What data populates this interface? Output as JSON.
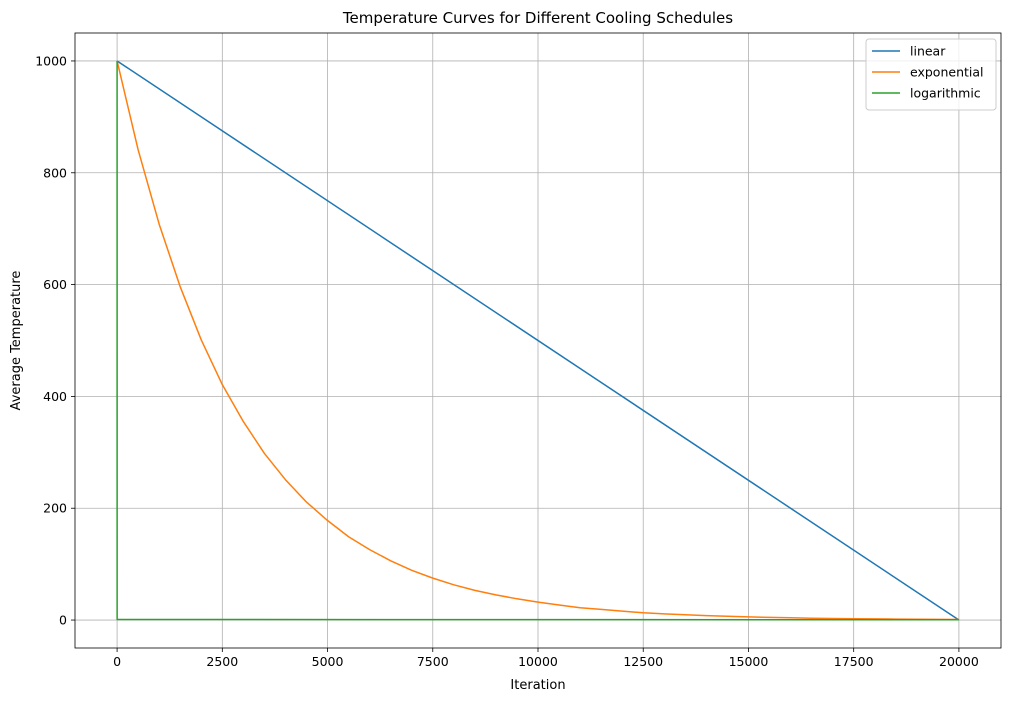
{
  "chart_data": {
    "type": "line",
    "title": "Temperature Curves for Different Cooling Schedules",
    "xlabel": "Iteration",
    "ylabel": "Average Temperature",
    "xlim": [
      -1000,
      21000
    ],
    "ylim": [
      -50,
      1050
    ],
    "xticks": [
      0,
      2500,
      5000,
      7500,
      10000,
      12500,
      15000,
      17500,
      20000
    ],
    "yticks": [
      0,
      200,
      400,
      600,
      800,
      1000
    ],
    "grid": true,
    "legend_position": "top-right",
    "series": [
      {
        "name": "linear",
        "color": "#1f77b4",
        "x": [
          0,
          20000
        ],
        "y": [
          1000,
          0
        ]
      },
      {
        "name": "exponential",
        "color": "#ff7f0e",
        "x": [
          0,
          500,
          1000,
          1500,
          2000,
          2500,
          3000,
          3500,
          4000,
          4500,
          5000,
          5500,
          6000,
          6500,
          7000,
          7500,
          8000,
          8500,
          9000,
          9500,
          10000,
          10500,
          11000,
          11500,
          12000,
          12500,
          13000,
          13500,
          14000,
          14500,
          15000,
          15500,
          16000,
          16500,
          17000,
          17500,
          18000,
          18500,
          19000,
          19500,
          20000
        ],
        "y": [
          1000,
          841,
          708,
          596,
          501,
          421,
          355,
          298,
          251,
          211,
          178,
          149,
          126,
          106,
          89,
          75,
          63,
          53,
          45,
          38,
          32,
          27,
          22,
          19,
          16,
          13,
          11,
          9.4,
          7.9,
          6.7,
          5.6,
          4.7,
          4.0,
          3.3,
          2.8,
          2.4,
          2.0,
          1.7,
          1.4,
          1.2,
          1.0
        ]
      },
      {
        "name": "logarithmic",
        "color": "#2ca02c",
        "x": [
          0,
          1,
          2,
          20000
        ],
        "y": [
          1000,
          3,
          1,
          0.5
        ]
      }
    ]
  }
}
